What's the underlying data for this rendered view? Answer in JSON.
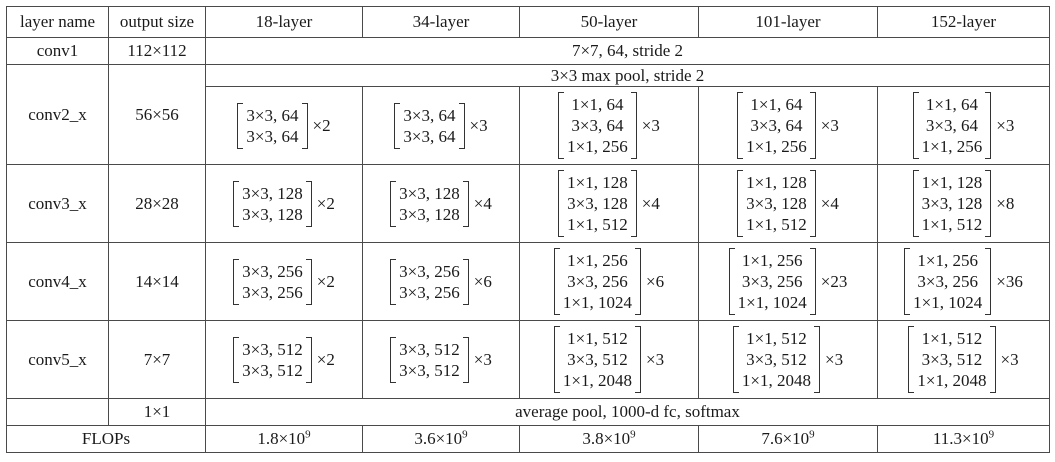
{
  "headers": [
    "layer name",
    "output size",
    "18-layer",
    "34-layer",
    "50-layer",
    "101-layer",
    "152-layer"
  ],
  "conv1": {
    "name": "conv1",
    "size": "112×112",
    "spec": "7×7, 64, stride 2"
  },
  "conv2": {
    "name": "conv2_x",
    "size": "56×56",
    "pool": "3×3 max pool, stride 2",
    "cells": [
      {
        "lines": [
          "3×3, 64",
          "3×3, 64"
        ],
        "mult": "×2"
      },
      {
        "lines": [
          "3×3, 64",
          "3×3, 64"
        ],
        "mult": "×3"
      },
      {
        "lines": [
          "1×1, 64",
          "3×3, 64",
          "1×1, 256"
        ],
        "mult": "×3"
      },
      {
        "lines": [
          "1×1, 64",
          "3×3, 64",
          "1×1, 256"
        ],
        "mult": "×3"
      },
      {
        "lines": [
          "1×1, 64",
          "3×3, 64",
          "1×1, 256"
        ],
        "mult": "×3"
      }
    ]
  },
  "conv3": {
    "name": "conv3_x",
    "size": "28×28",
    "cells": [
      {
        "lines": [
          "3×3, 128",
          "3×3, 128"
        ],
        "mult": "×2"
      },
      {
        "lines": [
          "3×3, 128",
          "3×3, 128"
        ],
        "mult": "×4"
      },
      {
        "lines": [
          "1×1, 128",
          "3×3, 128",
          "1×1, 512"
        ],
        "mult": "×4"
      },
      {
        "lines": [
          "1×1, 128",
          "3×3, 128",
          "1×1, 512"
        ],
        "mult": "×4"
      },
      {
        "lines": [
          "1×1, 128",
          "3×3, 128",
          "1×1, 512"
        ],
        "mult": "×8"
      }
    ]
  },
  "conv4": {
    "name": "conv4_x",
    "size": "14×14",
    "cells": [
      {
        "lines": [
          "3×3, 256",
          "3×3, 256"
        ],
        "mult": "×2"
      },
      {
        "lines": [
          "3×3, 256",
          "3×3, 256"
        ],
        "mult": "×6"
      },
      {
        "lines": [
          "1×1, 256",
          "3×3, 256",
          "1×1, 1024"
        ],
        "mult": "×6"
      },
      {
        "lines": [
          "1×1, 256",
          "3×3, 256",
          "1×1, 1024"
        ],
        "mult": "×23"
      },
      {
        "lines": [
          "1×1, 256",
          "3×3, 256",
          "1×1, 1024"
        ],
        "mult": "×36"
      }
    ]
  },
  "conv5": {
    "name": "conv5_x",
    "size": "7×7",
    "cells": [
      {
        "lines": [
          "3×3, 512",
          "3×3, 512"
        ],
        "mult": "×2"
      },
      {
        "lines": [
          "3×3, 512",
          "3×3, 512"
        ],
        "mult": "×3"
      },
      {
        "lines": [
          "1×1, 512",
          "3×3, 512",
          "1×1, 2048"
        ],
        "mult": "×3"
      },
      {
        "lines": [
          "1×1, 512",
          "3×3, 512",
          "1×1, 2048"
        ],
        "mult": "×3"
      },
      {
        "lines": [
          "1×1, 512",
          "3×3, 512",
          "1×1, 2048"
        ],
        "mult": "×3"
      }
    ]
  },
  "final": {
    "size": "1×1",
    "spec": "average pool, 1000-d fc, softmax"
  },
  "flops": {
    "label": "FLOPs",
    "values": [
      {
        "mantissa": "1.8×10",
        "exp": "9"
      },
      {
        "mantissa": "3.6×10",
        "exp": "9"
      },
      {
        "mantissa": "3.8×10",
        "exp": "9"
      },
      {
        "mantissa": "7.6×10",
        "exp": "9"
      },
      {
        "mantissa": "11.3×10",
        "exp": "9"
      }
    ]
  }
}
